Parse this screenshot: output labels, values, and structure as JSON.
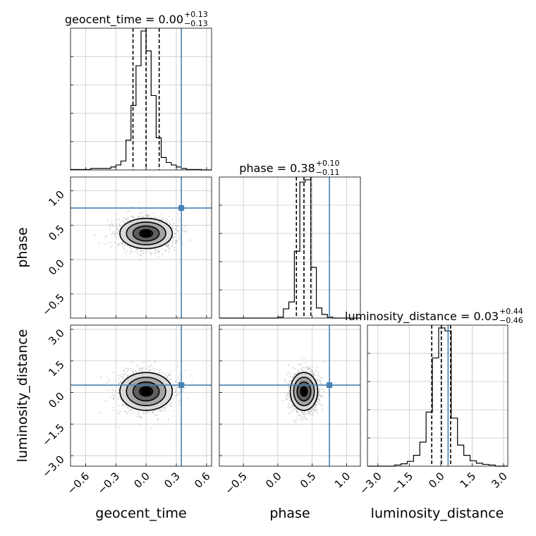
{
  "chart_data": {
    "type": "corner",
    "parameters": [
      "geocent_time",
      "phase",
      "luminosity_distance"
    ],
    "truths": {
      "geocent_time": 0.35,
      "phase": 0.75,
      "luminosity_distance": 0.35
    },
    "truth_color": "#4682b4",
    "grid": true,
    "titles": {
      "geocent_time": {
        "prefix": "geocent_time = 0.00",
        "upper": "+0.13",
        "lower": "−0.13"
      },
      "phase": {
        "prefix": "phase = 0.38",
        "upper": "+0.10",
        "lower": "−0.11"
      },
      "luminosity_distance": {
        "prefix": "luminosity_distance = 0.03",
        "upper": "+0.44",
        "lower": "−0.46"
      }
    },
    "diagonal_histograms": [
      {
        "parameter": "geocent_time",
        "xlim": [
          -0.75,
          0.65
        ],
        "bin_edges": [
          -0.75,
          -0.55,
          -0.35,
          -0.3,
          -0.25,
          -0.2,
          -0.15,
          -0.1,
          -0.05,
          0.0,
          0.05,
          0.1,
          0.15,
          0.2,
          0.25,
          0.3,
          0.35,
          0.4,
          0.45,
          0.55,
          0.65
        ],
        "counts": [
          1,
          3,
          6,
          10,
          18,
          60,
          130,
          210,
          280,
          240,
          150,
          65,
          25,
          15,
          10,
          6,
          3,
          1,
          1,
          0
        ],
        "quantile_lines": [
          -0.13,
          0.0,
          0.13
        ]
      },
      {
        "parameter": "phase",
        "xlim": [
          -0.85,
          1.2
        ],
        "bin_edges": [
          -0.85,
          0.0,
          0.08,
          0.16,
          0.24,
          0.32,
          0.4,
          0.48,
          0.56,
          0.64,
          0.72,
          0.8,
          1.2
        ],
        "counts": [
          0,
          2,
          20,
          35,
          145,
          295,
          300,
          110,
          22,
          8,
          2,
          0
        ],
        "quantile_lines": [
          0.27,
          0.38,
          0.48
        ]
      },
      {
        "parameter": "luminosity_distance",
        "xlim": [
          -3.5,
          3.2
        ],
        "bin_edges": [
          -3.5,
          -2.2,
          -1.9,
          -1.6,
          -1.3,
          -1.0,
          -0.7,
          -0.4,
          -0.1,
          0.2,
          0.5,
          0.8,
          1.1,
          1.4,
          1.7,
          2.0,
          2.3,
          2.6,
          3.2
        ],
        "counts": [
          0,
          2,
          4,
          8,
          18,
          40,
          90,
          180,
          230,
          225,
          80,
          35,
          18,
          9,
          5,
          3,
          2,
          0
        ],
        "quantile_lines": [
          -0.43,
          0.03,
          0.47
        ]
      }
    ],
    "panels_2d": [
      {
        "x": "geocent_time",
        "y": "phase",
        "xlim": [
          -0.75,
          0.65
        ],
        "ylim": [
          -0.85,
          1.2
        ],
        "center": [
          0.0,
          0.38
        ],
        "sigma": [
          0.13,
          0.11
        ],
        "contour_sigmas": [
          0.5,
          1.0,
          1.5,
          2.0
        ]
      },
      {
        "x": "geocent_time",
        "y": "luminosity_distance",
        "xlim": [
          -0.75,
          0.65
        ],
        "ylim": [
          -3.5,
          3.2
        ],
        "center": [
          0.0,
          0.05
        ],
        "sigma": [
          0.13,
          0.45
        ],
        "contour_sigmas": [
          0.5,
          1.0,
          1.5,
          2.0
        ]
      },
      {
        "x": "phase",
        "y": "luminosity_distance",
        "xlim": [
          -0.85,
          1.2
        ],
        "ylim": [
          -3.5,
          3.2
        ],
        "center": [
          0.38,
          0.05
        ],
        "sigma": [
          0.1,
          0.45
        ],
        "contour_sigmas": [
          0.5,
          1.0,
          1.5,
          2.0
        ]
      }
    ],
    "ticks": {
      "geocent_time": [
        "−0.6",
        "−0.3",
        "0.0",
        "0.3",
        "0.6"
      ],
      "geocent_time_values": [
        -0.6,
        -0.3,
        0.0,
        0.3,
        0.6
      ],
      "phase_y": [
        "−0.5",
        "0.0",
        "0.5",
        "1.0"
      ],
      "phase_y_values": [
        -0.5,
        0.0,
        0.5,
        1.0
      ],
      "phase_x": [
        "−0.5",
        "0.0",
        "0.5",
        "1.0"
      ],
      "phase_x_values": [
        -0.5,
        0.0,
        0.5,
        1.0
      ],
      "luminosity_distance": [
        "−3.0",
        "−1.5",
        "0.0",
        "1.5",
        "3.0"
      ],
      "luminosity_distance_values": [
        -3.0,
        -1.5,
        0.0,
        1.5,
        3.0
      ]
    },
    "axis_labels": {
      "x": [
        "geocent_time",
        "phase",
        "luminosity_distance"
      ],
      "y": [
        "phase",
        "luminosity_distance"
      ]
    }
  }
}
